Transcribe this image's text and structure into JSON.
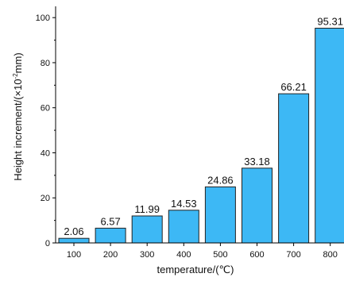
{
  "chart_data": {
    "type": "bar",
    "categories": [
      "100",
      "200",
      "300",
      "400",
      "500",
      "600",
      "700",
      "800"
    ],
    "values": [
      2.06,
      6.57,
      11.99,
      14.53,
      24.86,
      33.18,
      66.21,
      95.31
    ],
    "value_labels": [
      "2.06",
      "6.57",
      "11.99",
      "14.53",
      "24.86",
      "33.18",
      "66.21",
      "95.31"
    ],
    "title": "",
    "xlabel": "temperature/(℃)",
    "ylabel_main": "Height increment/(×10",
    "ylabel_sup": "-2",
    "ylabel_tail": "mm)",
    "ylim": [
      0,
      105
    ],
    "yticks": [
      0,
      20,
      40,
      60,
      80,
      100
    ],
    "ytick_labels": [
      "0",
      "20",
      "40",
      "60",
      "80",
      "100"
    ],
    "grid": false,
    "bar_color": "#3db8f5",
    "bar_edge_color": "#222222"
  }
}
